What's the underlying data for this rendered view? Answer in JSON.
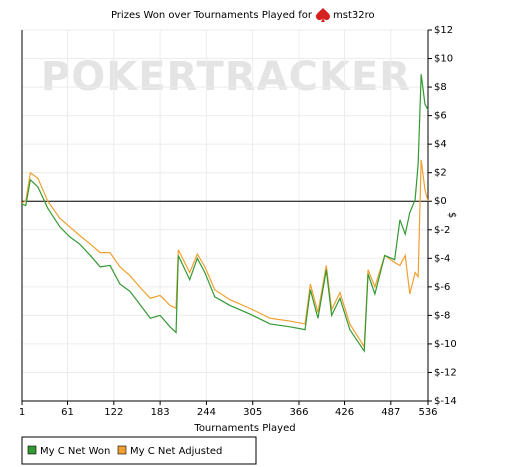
{
  "chart_data": {
    "type": "line",
    "title": "Prizes Won over Tournaments Played for",
    "player": "mst32ro",
    "watermark": "POKERTRACKER",
    "xlabel": "Tournaments Played",
    "ylabel": "$",
    "x": [
      1,
      6,
      12,
      22,
      35,
      51,
      64,
      77,
      91,
      104,
      117,
      130,
      143,
      156,
      170,
      183,
      196,
      204,
      207,
      222,
      232,
      242,
      255,
      275,
      301,
      328,
      354,
      374,
      381,
      391,
      402,
      409,
      420,
      433,
      452,
      457,
      466,
      479,
      492,
      499,
      506,
      512,
      519,
      523,
      527,
      532,
      536
    ],
    "series": [
      {
        "name": "My C Net Won",
        "color": "#339933",
        "values": [
          -0.2,
          -0.3,
          1.5,
          1.0,
          -0.5,
          -1.8,
          -2.5,
          -3.0,
          -3.8,
          -4.6,
          -4.5,
          -5.8,
          -6.3,
          -7.2,
          -8.2,
          -8.0,
          -8.8,
          -9.2,
          -3.8,
          -5.5,
          -4.0,
          -5.0,
          -6.7,
          -7.3,
          -7.9,
          -8.6,
          -8.8,
          -9.0,
          -6.2,
          -8.2,
          -4.8,
          -8.0,
          -6.8,
          -9.0,
          -10.5,
          -5.1,
          -6.5,
          -3.8,
          -4.1,
          -1.3,
          -2.3,
          -0.8,
          0.1,
          2.6,
          8.9,
          6.8,
          6.4
        ]
      },
      {
        "name": "My C Net Adjusted",
        "color": "#f0a030",
        "values": [
          -0.1,
          0,
          2.0,
          1.6,
          0,
          -1.2,
          -1.8,
          -2.4,
          -3.0,
          -3.6,
          -3.6,
          -4.6,
          -5.2,
          -6.0,
          -6.8,
          -6.6,
          -7.3,
          -7.5,
          -3.4,
          -5.0,
          -3.7,
          -4.6,
          -6.2,
          -6.9,
          -7.5,
          -8.2,
          -8.4,
          -8.6,
          -5.8,
          -7.8,
          -4.5,
          -7.6,
          -6.4,
          -8.6,
          -10.2,
          -4.8,
          -6.0,
          -3.8,
          -4.3,
          -4.5,
          -3.8,
          -6.5,
          -5.0,
          -5.3,
          2.9,
          0.8,
          0.0
        ]
      }
    ],
    "xlim": [
      1,
      536
    ],
    "xticks": [
      1,
      61,
      122,
      183,
      244,
      305,
      366,
      426,
      487,
      536
    ],
    "ylim": [
      -14,
      12
    ],
    "yticks": [
      {
        "value": 12,
        "label": "$12"
      },
      {
        "value": 10,
        "label": "$10"
      },
      {
        "value": 8,
        "label": "$8"
      },
      {
        "value": 6,
        "label": "$6"
      },
      {
        "value": 4,
        "label": "$4"
      },
      {
        "value": 2,
        "label": "$2"
      },
      {
        "value": 0,
        "label": "$0"
      },
      {
        "value": -2,
        "label": "$-2"
      },
      {
        "value": -4,
        "label": "$-4"
      },
      {
        "value": -6,
        "label": "$-6"
      },
      {
        "value": -8,
        "label": "$-8"
      },
      {
        "value": -10,
        "label": "$-10"
      },
      {
        "value": -12,
        "label": "$-12"
      },
      {
        "value": -14,
        "label": "$-14"
      }
    ],
    "grid": true
  }
}
